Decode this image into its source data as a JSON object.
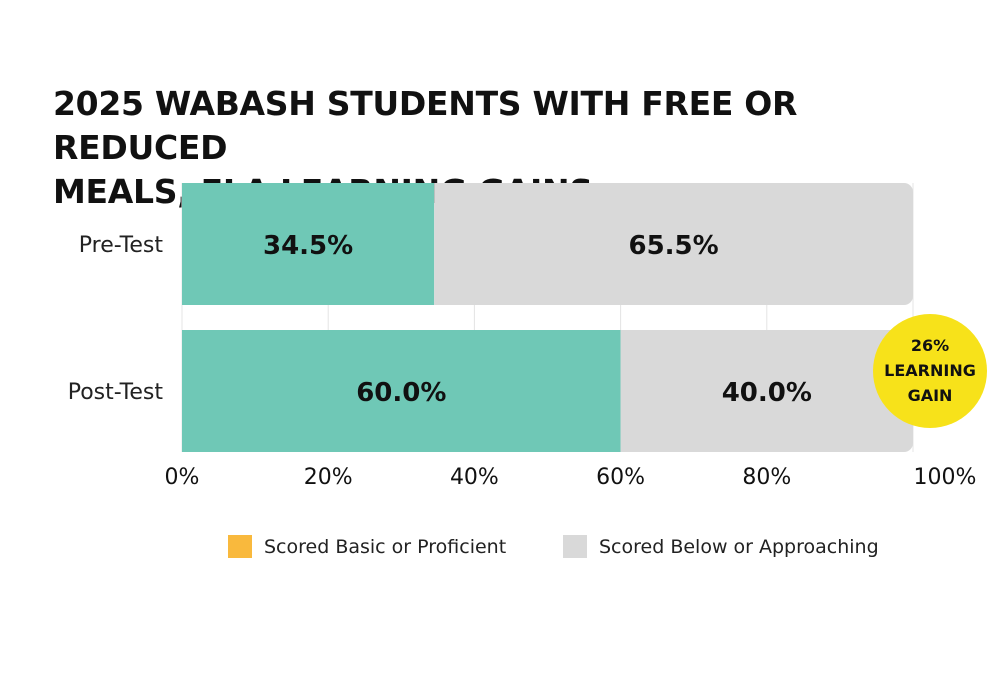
{
  "chart_data": {
    "type": "bar",
    "orientation": "horizontal",
    "stacked": true,
    "title_lines": [
      "2025 WABASH STUDENTS WITH FREE OR REDUCED",
      "MEALS, ELA LEARNING GAINS"
    ],
    "categories": [
      "Pre-Test",
      "Post-Test"
    ],
    "series": [
      {
        "name": "Scored Basic or Proficient",
        "values": [
          34.5,
          60.0
        ],
        "value_labels": [
          "34.5%",
          "60.0%"
        ],
        "bar_color": "#6fc8b6",
        "legend_color": "#f9b93d"
      },
      {
        "name": "Scored Below or Approaching",
        "values": [
          65.5,
          40.0
        ],
        "value_labels": [
          "65.5%",
          "40.0%"
        ],
        "bar_color": "#d9d9d9",
        "legend_color": "#d9d9d9"
      }
    ],
    "xlim": [
      0,
      100
    ],
    "xticks": [
      0,
      20,
      40,
      60,
      80,
      100
    ],
    "xtick_labels": [
      "0%",
      "20%",
      "40%",
      "60%",
      "80%",
      "100%"
    ],
    "grid": true,
    "legend_position": "bottom",
    "callout": {
      "lines": [
        "26%",
        "LEARNING",
        "GAIN"
      ],
      "color": "#f7e21a"
    }
  }
}
